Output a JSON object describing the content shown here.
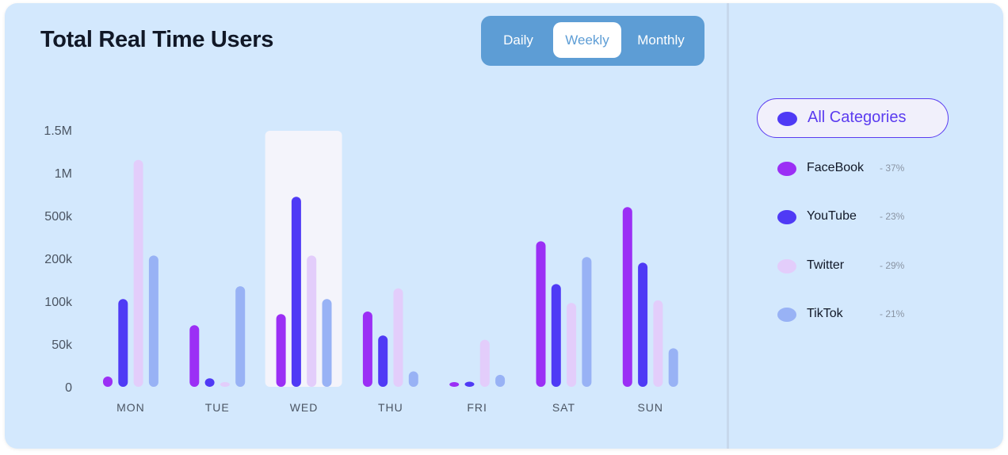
{
  "header": {
    "title": "Total Real Time Users"
  },
  "toggle": {
    "options": [
      "Daily",
      "Weekly",
      "Monthly"
    ],
    "selected": "Weekly"
  },
  "legend": {
    "all_label": "All Categories",
    "all_color": "#4f3af5",
    "items": [
      {
        "name": "FaceBook",
        "pct": "- 37%",
        "color": "#9b2ff5"
      },
      {
        "name": "YouTube",
        "pct": "- 23%",
        "color": "#4f3af5"
      },
      {
        "name": "Twitter",
        "pct": "- 29%",
        "color": "#e3cdfb"
      },
      {
        "name": "TikTok",
        "pct": "- 21%",
        "color": "#98b2f5"
      }
    ]
  },
  "chart_data": {
    "type": "bar",
    "categories": [
      "MON",
      "TUE",
      "WED",
      "THU",
      "FRI",
      "SAT",
      "SUN"
    ],
    "highlighted_category": "WED",
    "y_ticks": [
      "0",
      "50k",
      "100k",
      "200k",
      "500k",
      "1M",
      "1.5M"
    ],
    "y_scale": "nonlinear (ticks 0, 50k, 100k, 200k, 500k, 1M, 1.5M equally spaced)",
    "ylim": [
      0,
      1500000
    ],
    "grid": false,
    "series": [
      {
        "name": "FaceBook",
        "color": "#9b2ff5",
        "values": [
          12000,
          72000,
          85000,
          88000,
          4000,
          320000,
          600000
        ]
      },
      {
        "name": "YouTube",
        "color": "#4f3af5",
        "values": [
          105000,
          10000,
          720000,
          60000,
          6000,
          140000,
          190000
        ]
      },
      {
        "name": "Twitter",
        "color": "#e3cdfb",
        "values": [
          1150000,
          5000,
          220000,
          130000,
          55000,
          98000,
          102000
        ]
      },
      {
        "name": "TikTok",
        "color": "#98b2f5",
        "values": [
          220000,
          135000,
          105000,
          18000,
          14000,
          210000,
          45000
        ]
      }
    ]
  }
}
